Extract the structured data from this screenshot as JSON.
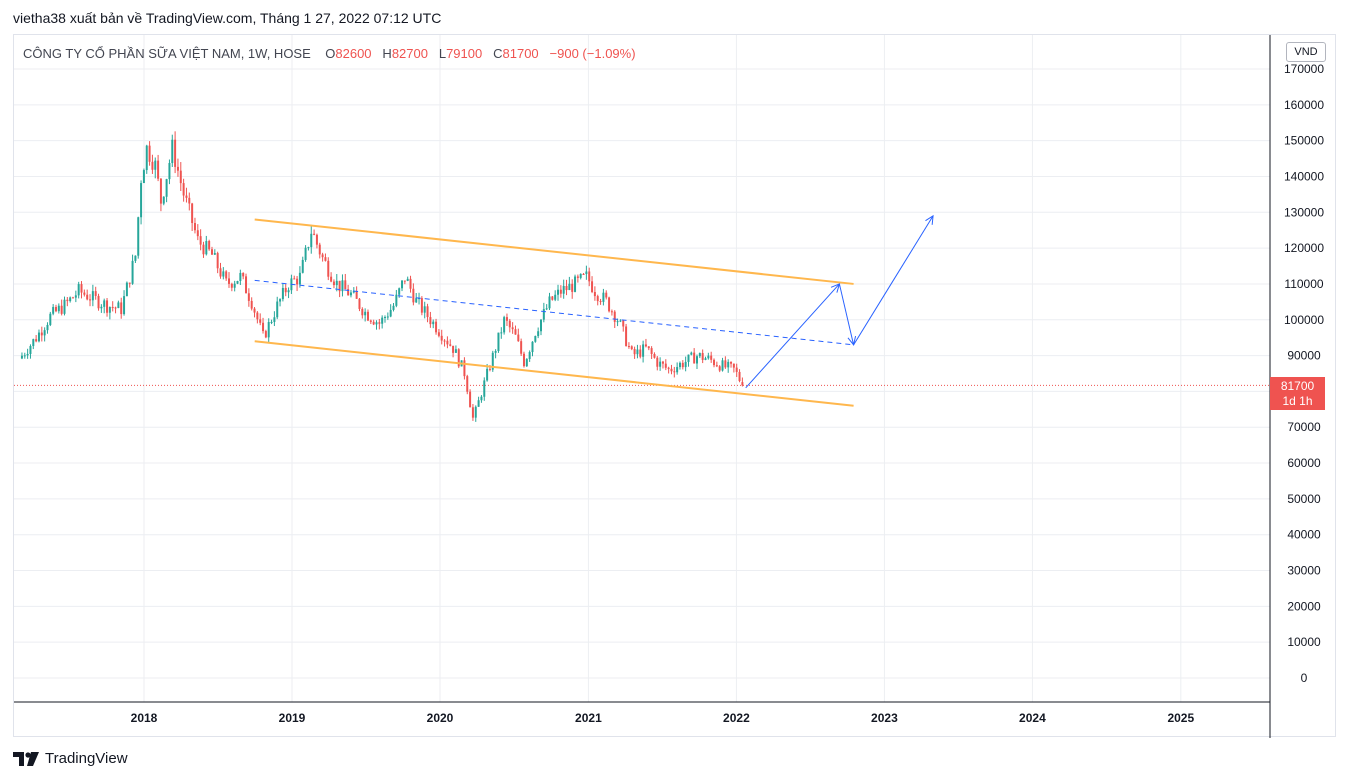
{
  "header": {
    "publish_text": "vietha38 xuất bản về TradingView.com, Tháng 1 27, 2022 07:12 UTC"
  },
  "legend": {
    "symbol": "CÔNG TY CỔ PHẦN SỮA VIỆT NAM, 1W, HOSE",
    "open_label": "O",
    "open": "82600",
    "high_label": "H",
    "high": "82700",
    "low_label": "L",
    "low": "79100",
    "close_label": "C",
    "close": "81700",
    "change": "−900 (−1.09%)"
  },
  "currency_button": "VND",
  "price_tag": {
    "price": "81700",
    "countdown": "1d 1h"
  },
  "footer": {
    "brand": "TradingView"
  },
  "colors": {
    "up": "#26a69a",
    "down": "#ef5350",
    "channel": "#ffb74d",
    "projection": "#2962ff",
    "grid": "#eceef2",
    "last_price_line": "#ef5350"
  },
  "chart_data": {
    "type": "candlestick",
    "timeframe": "1W",
    "y_axis": {
      "ticks": [
        0,
        10000,
        20000,
        30000,
        40000,
        50000,
        60000,
        70000,
        80000,
        90000,
        100000,
        110000,
        120000,
        130000,
        140000,
        150000,
        160000,
        170000
      ],
      "range": [
        -5000,
        172000
      ]
    },
    "x_axis": {
      "ticks": [
        "2018",
        "2019",
        "2020",
        "2021",
        "2022",
        "2023",
        "2024",
        "2025"
      ],
      "range": [
        "2017-03",
        "2025-12"
      ]
    },
    "last_price": 81700,
    "price_path": [
      [
        "2017-03-06",
        90000
      ],
      [
        "2017-04-10",
        95000
      ],
      [
        "2017-05-15",
        101000
      ],
      [
        "2017-06-19",
        104000
      ],
      [
        "2017-07-24",
        108000
      ],
      [
        "2017-08-28",
        106000
      ],
      [
        "2017-10-02",
        104000
      ],
      [
        "2017-11-06",
        103000
      ],
      [
        "2017-12-11",
        118000
      ],
      [
        "2017-12-25",
        140000
      ],
      [
        "2018-01-08",
        148000
      ],
      [
        "2018-01-29",
        143000
      ],
      [
        "2018-02-12",
        133000
      ],
      [
        "2018-03-12",
        148000
      ],
      [
        "2018-04-09",
        135000
      ],
      [
        "2018-05-14",
        122000
      ],
      [
        "2018-06-18",
        118000
      ],
      [
        "2018-07-23",
        110000
      ],
      [
        "2018-08-27",
        112000
      ],
      [
        "2018-09-24",
        105000
      ],
      [
        "2018-10-22",
        95000
      ],
      [
        "2018-11-26",
        104000
      ],
      [
        "2018-12-24",
        110000
      ],
      [
        "2019-01-21",
        112000
      ],
      [
        "2019-02-18",
        125000
      ],
      [
        "2019-03-18",
        117000
      ],
      [
        "2019-04-22",
        110000
      ],
      [
        "2019-05-27",
        107000
      ],
      [
        "2019-07-01",
        102000
      ],
      [
        "2019-08-05",
        99000
      ],
      [
        "2019-09-09",
        104000
      ],
      [
        "2019-10-07",
        112000
      ],
      [
        "2019-11-04",
        105000
      ],
      [
        "2019-12-09",
        100000
      ],
      [
        "2020-01-06",
        96000
      ],
      [
        "2020-02-03",
        92000
      ],
      [
        "2020-03-02",
        85000
      ],
      [
        "2020-03-23",
        72000
      ],
      [
        "2020-04-13",
        80000
      ],
      [
        "2020-05-11",
        90000
      ],
      [
        "2020-06-08",
        100000
      ],
      [
        "2020-07-06",
        95000
      ],
      [
        "2020-07-27",
        88000
      ],
      [
        "2020-08-24",
        97000
      ],
      [
        "2020-09-28",
        105000
      ],
      [
        "2020-10-26",
        108000
      ],
      [
        "2020-11-30",
        110000
      ],
      [
        "2020-12-28",
        112000
      ],
      [
        "2021-01-18",
        108000
      ],
      [
        "2021-02-15",
        105000
      ],
      [
        "2021-03-15",
        100000
      ],
      [
        "2021-04-19",
        90000
      ],
      [
        "2021-05-24",
        92000
      ],
      [
        "2021-06-21",
        88000
      ],
      [
        "2021-07-19",
        86000
      ],
      [
        "2021-08-23",
        88000
      ],
      [
        "2021-09-27",
        90000
      ],
      [
        "2021-10-25",
        89000
      ],
      [
        "2021-11-29",
        87000
      ],
      [
        "2021-12-27",
        86000
      ],
      [
        "2022-01-17",
        81700
      ]
    ],
    "drawings": {
      "channel_upper": [
        [
          "2018-10-01",
          128000
        ],
        [
          "2022-10-17",
          110000
        ]
      ],
      "channel_lower": [
        [
          "2018-10-01",
          94000
        ],
        [
          "2022-10-17",
          76000
        ]
      ],
      "channel_mid_dashed": [
        [
          "2018-10-01",
          111000
        ],
        [
          "2022-10-17",
          93000
        ]
      ],
      "projection_arrows": [
        [
          [
            "2022-01-24",
            81000
          ],
          [
            "2022-09-12",
            110000
          ]
        ],
        [
          [
            "2022-09-12",
            110000
          ],
          [
            "2022-10-17",
            93000
          ]
        ],
        [
          [
            "2022-10-17",
            93000
          ],
          [
            "2023-05-01",
            129000
          ]
        ]
      ]
    }
  }
}
